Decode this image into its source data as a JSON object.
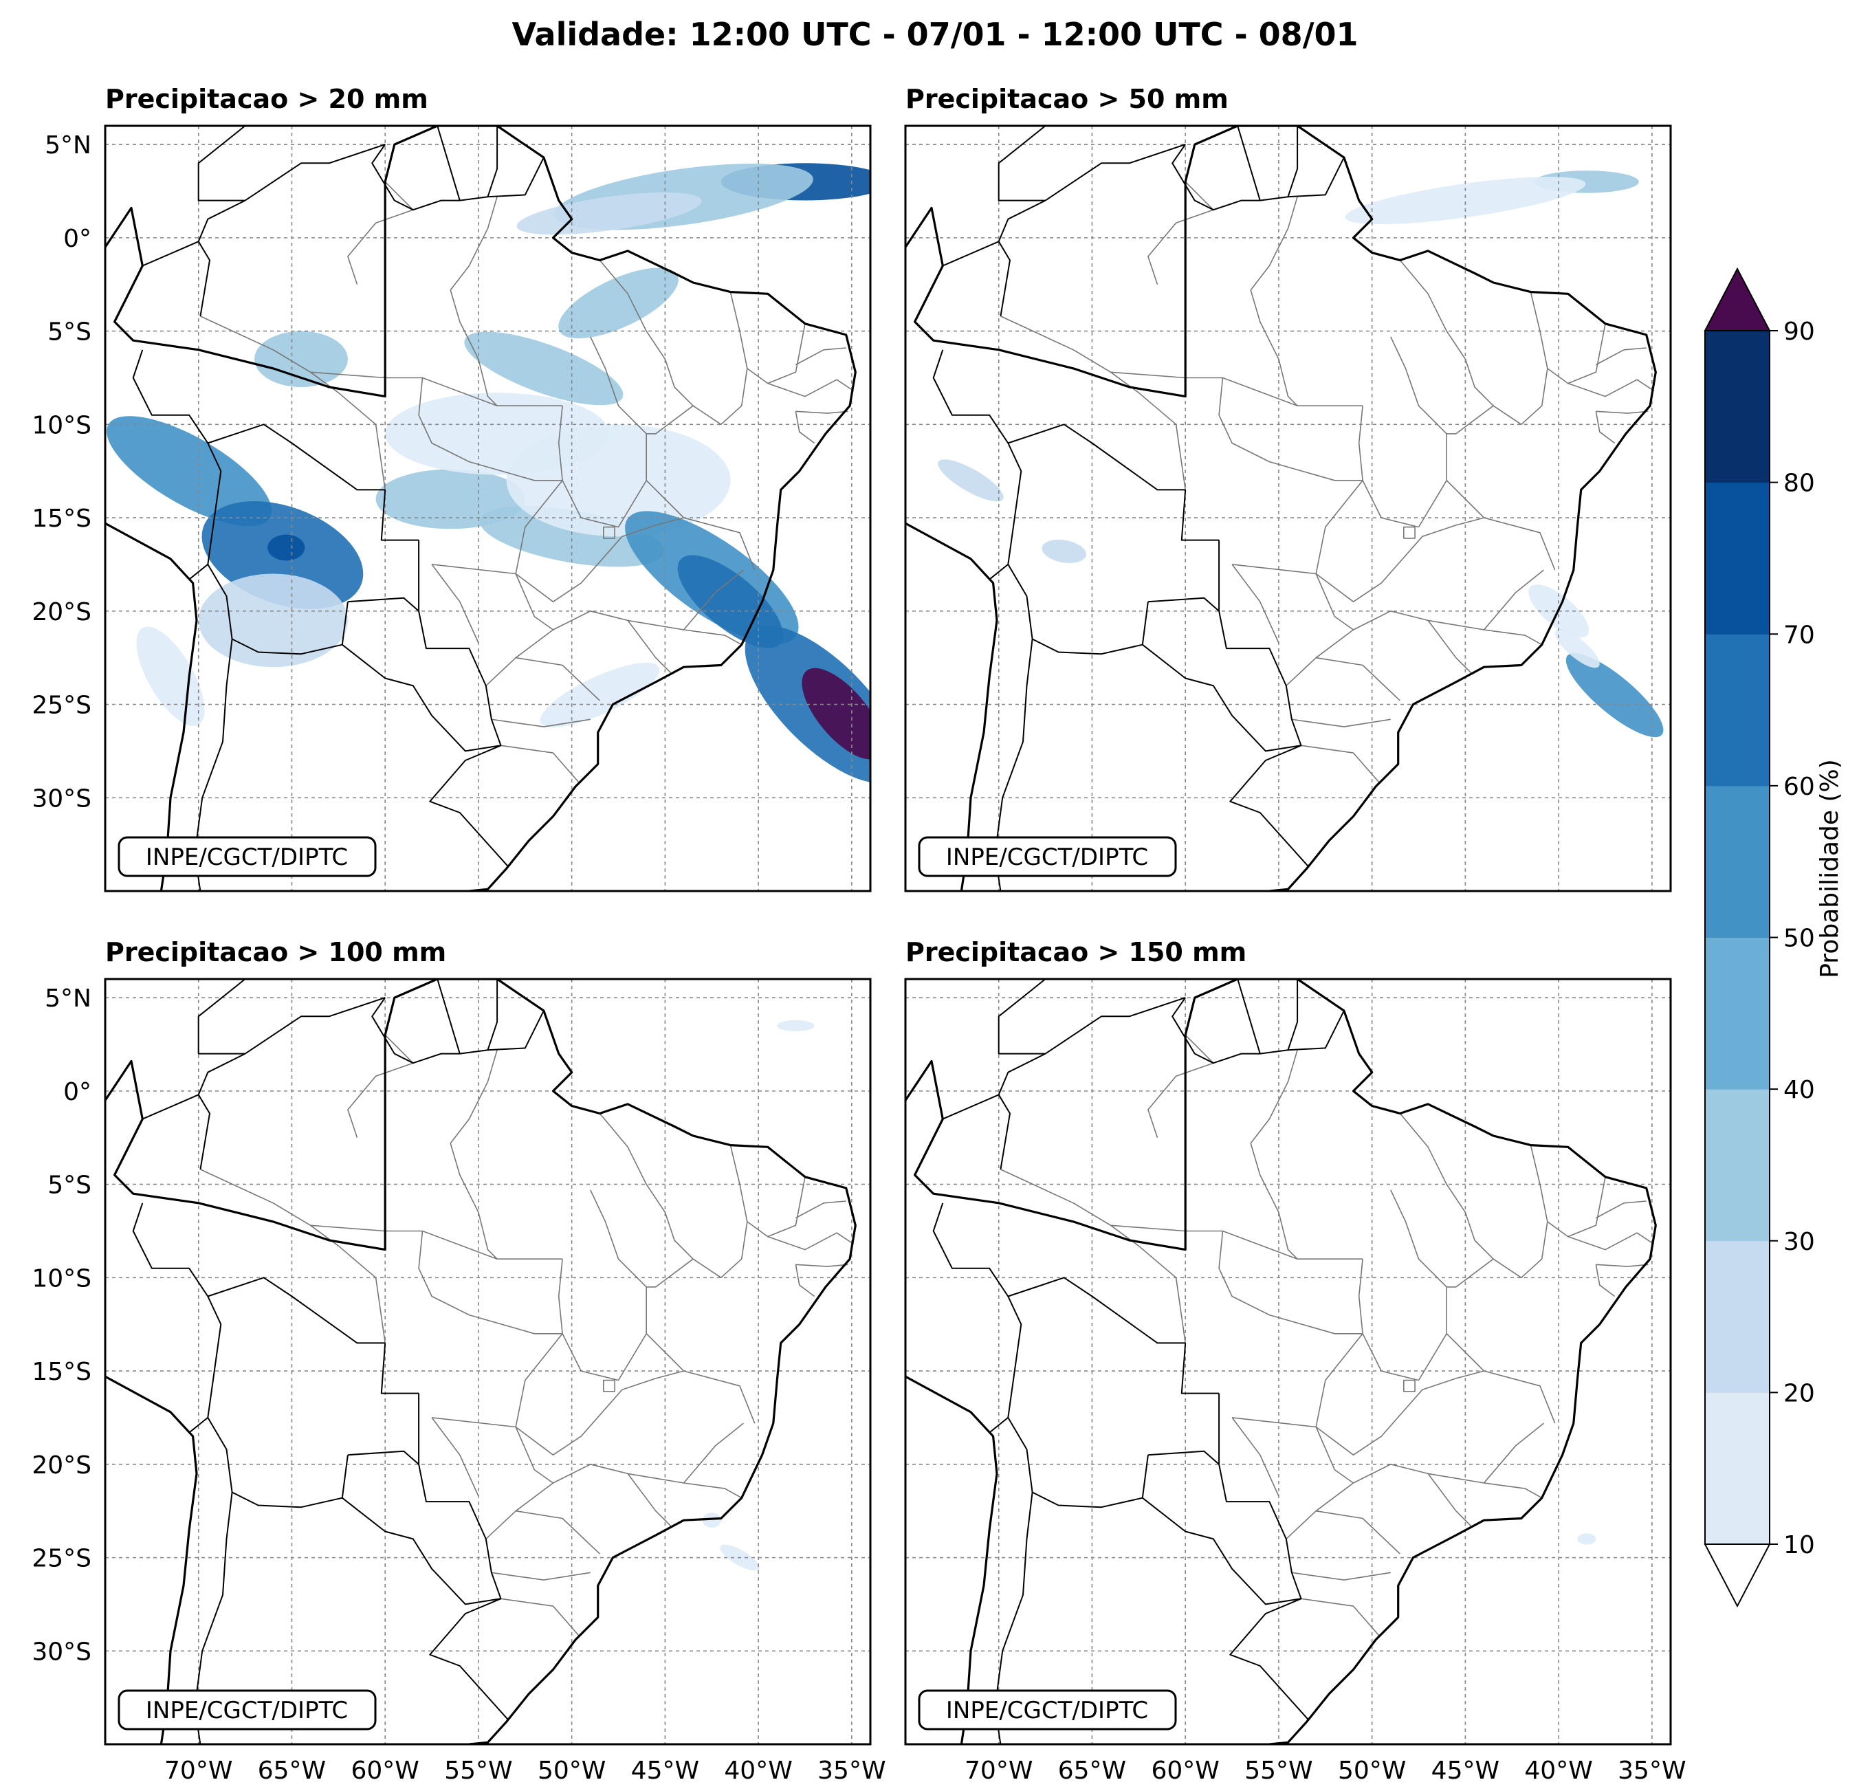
{
  "figure_title": "Validade: 12:00 UTC - 07/01 - 12:00 UTC - 08/01",
  "credit": "INPE/CGCT/DIPTC",
  "panels": [
    {
      "title": "Precipitacao > 20 mm",
      "threshold_mm": 20
    },
    {
      "title": "Precipitacao > 50 mm",
      "threshold_mm": 50
    },
    {
      "title": "Precipitacao > 100 mm",
      "threshold_mm": 100
    },
    {
      "title": "Precipitacao > 150 mm",
      "threshold_mm": 150
    }
  ],
  "lat_ticks": [
    "5°N",
    "0°",
    "5°S",
    "10°S",
    "15°S",
    "20°S",
    "25°S",
    "30°S"
  ],
  "lon_ticks": [
    "70°W",
    "65°W",
    "60°W",
    "55°W",
    "50°W",
    "45°W",
    "40°W",
    "35°W"
  ],
  "colorbar": {
    "label": "Probabilidade (%)",
    "ticks": [
      "10",
      "20",
      "30",
      "40",
      "50",
      "60",
      "70",
      "80",
      "90"
    ],
    "colors": [
      "#deebf7",
      "#c6dbef",
      "#9ecae1",
      "#6baed6",
      "#4292c6",
      "#2171b5",
      "#08519c",
      "#08306b"
    ],
    "over_color": "#4a0a4e",
    "under_color": "#ffffff"
  },
  "blobs": [
    [
      {
        "lon": -37.5,
        "lat": 3.0,
        "rx": 4.5,
        "ry": 1.0,
        "rot": 0,
        "level": 7
      },
      {
        "lon": -44.0,
        "lat": 2.2,
        "rx": 7,
        "ry": 1.5,
        "rot": -8,
        "level": 3
      },
      {
        "lon": -48.0,
        "lat": 1.3,
        "rx": 5,
        "ry": 0.9,
        "rot": -8,
        "level": 2
      },
      {
        "lon": -47.5,
        "lat": -3.5,
        "rx": 3.5,
        "ry": 1.3,
        "rot": -25,
        "level": 3
      },
      {
        "lon": -51.5,
        "lat": -7.0,
        "rx": 4.5,
        "ry": 1.3,
        "rot": 20,
        "level": 3
      },
      {
        "lon": -64.5,
        "lat": -6.5,
        "rx": 2.5,
        "ry": 1.5,
        "rot": 0,
        "level": 3
      },
      {
        "lon": -70.5,
        "lat": -12.5,
        "rx": 5,
        "ry": 1.8,
        "rot": 30,
        "level": 5
      },
      {
        "lon": -65.5,
        "lat": -17.0,
        "rx": 4.5,
        "ry": 2.6,
        "rot": 20,
        "level": 6
      },
      {
        "lon": -65.3,
        "lat": -16.6,
        "rx": 1.0,
        "ry": 0.7,
        "rot": 0,
        "level": 7
      },
      {
        "lon": -66.0,
        "lat": -20.5,
        "rx": 4,
        "ry": 2.5,
        "rot": 0,
        "level": 2
      },
      {
        "lon": -56.5,
        "lat": -14.0,
        "rx": 4,
        "ry": 1.6,
        "rot": 0,
        "level": 3
      },
      {
        "lon": -50.0,
        "lat": -16.0,
        "rx": 5,
        "ry": 1.4,
        "rot": 10,
        "level": 3
      },
      {
        "lon": -54.0,
        "lat": -10.5,
        "rx": 6,
        "ry": 2.2,
        "rot": 0,
        "level": 1
      },
      {
        "lon": -47.5,
        "lat": -13.0,
        "rx": 6,
        "ry": 3,
        "rot": 0,
        "level": 1
      },
      {
        "lon": -42.5,
        "lat": -18.2,
        "rx": 5.5,
        "ry": 2.0,
        "rot": 35,
        "level": 5
      },
      {
        "lon": -41.5,
        "lat": -19.5,
        "rx": 3.5,
        "ry": 1.4,
        "rot": 40,
        "level": 6
      },
      {
        "lon": -36.5,
        "lat": -25.0,
        "rx": 5.5,
        "ry": 2.3,
        "rot": 45,
        "level": 6
      },
      {
        "lon": -35.5,
        "lat": -25.5,
        "rx": 3.0,
        "ry": 1.3,
        "rot": 50,
        "level": 8
      },
      {
        "lon": -48.5,
        "lat": -24.5,
        "rx": 3.5,
        "ry": 1.0,
        "rot": -25,
        "level": 1
      },
      {
        "lon": -71.5,
        "lat": -23.5,
        "rx": 3,
        "ry": 1.2,
        "rot": 60,
        "level": 1
      }
    ],
    [
      {
        "lon": -38.5,
        "lat": 3.0,
        "rx": 2.8,
        "ry": 0.6,
        "rot": 0,
        "level": 3
      },
      {
        "lon": -45.0,
        "lat": 2.0,
        "rx": 6.5,
        "ry": 0.9,
        "rot": -8,
        "level": 1
      },
      {
        "lon": -66.5,
        "lat": -16.8,
        "rx": 1.2,
        "ry": 0.6,
        "rot": 10,
        "level": 2
      },
      {
        "lon": -71.5,
        "lat": -13.0,
        "rx": 2.0,
        "ry": 0.6,
        "rot": 30,
        "level": 2
      },
      {
        "lon": -40.0,
        "lat": -20.0,
        "rx": 2.0,
        "ry": 0.8,
        "rot": 40,
        "level": 1
      },
      {
        "lon": -37.0,
        "lat": -24.5,
        "rx": 3.3,
        "ry": 1.0,
        "rot": 40,
        "level": 5
      },
      {
        "lon": -39.0,
        "lat": -22.0,
        "rx": 1.5,
        "ry": 0.5,
        "rot": 40,
        "level": 1
      }
    ],
    [
      {
        "lon": -38.0,
        "lat": 3.5,
        "rx": 1.0,
        "ry": 0.3,
        "rot": 0,
        "level": 1
      },
      {
        "lon": -41.0,
        "lat": -25.0,
        "rx": 1.2,
        "ry": 0.4,
        "rot": 30,
        "level": 1
      },
      {
        "lon": -42.5,
        "lat": -23.0,
        "rx": 0.5,
        "ry": 0.4,
        "rot": 0,
        "level": 1
      }
    ],
    [
      {
        "lon": -38.5,
        "lat": -24.0,
        "rx": 0.5,
        "ry": 0.3,
        "rot": 0,
        "level": 1
      }
    ]
  ]
}
